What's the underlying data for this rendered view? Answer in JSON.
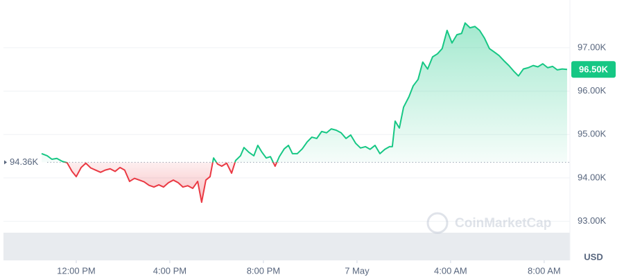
{
  "chart_data": {
    "type": "line",
    "currency": "USD",
    "watermark": "CoinMarketCap",
    "up_color": "#16c784",
    "down_color": "#ea3943",
    "baseline": {
      "value": 94360,
      "label": "94.36K"
    },
    "last_price": {
      "value": 96500,
      "label": "96.50K"
    },
    "xlim": [
      8.89,
      33.1
    ],
    "xticks": [
      {
        "value": 12,
        "label": "12:00 PM"
      },
      {
        "value": 16,
        "label": "4:00 PM"
      },
      {
        "value": 20,
        "label": "8:00 PM"
      },
      {
        "value": 24,
        "label": "7 May"
      },
      {
        "value": 28,
        "label": "4:00 AM"
      },
      {
        "value": 32,
        "label": "8:00 AM"
      }
    ],
    "ylim": [
      92100,
      98100
    ],
    "yticks": [
      {
        "value": 93000,
        "label": "93.00K"
      },
      {
        "value": 94000,
        "label": "94.00K"
      },
      {
        "value": 95000,
        "label": "95.00K"
      },
      {
        "value": 96000,
        "label": "96.00K"
      },
      {
        "value": 97000,
        "label": "97.00K"
      }
    ],
    "grid": true,
    "x": [
      10.52,
      10.76,
      10.96,
      11.17,
      11.41,
      11.61,
      11.82,
      12.0,
      12.21,
      12.41,
      12.62,
      12.83,
      13.04,
      13.24,
      13.45,
      13.66,
      13.87,
      14.07,
      14.28,
      14.49,
      14.7,
      14.9,
      15.11,
      15.32,
      15.53,
      15.73,
      15.94,
      16.15,
      16.36,
      16.56,
      16.77,
      16.98,
      17.19,
      17.36,
      17.54,
      17.72,
      17.87,
      18.04,
      18.22,
      18.43,
      18.64,
      18.81,
      19.02,
      19.17,
      19.38,
      19.59,
      19.76,
      19.94,
      20.12,
      20.3,
      20.5,
      20.68,
      20.89,
      21.07,
      21.24,
      21.45,
      21.66,
      21.87,
      22.07,
      22.28,
      22.49,
      22.7,
      22.9,
      23.11,
      23.32,
      23.53,
      23.73,
      23.94,
      24.15,
      24.36,
      24.56,
      24.77,
      24.98,
      25.19,
      25.39,
      25.51,
      25.63,
      25.81,
      25.99,
      26.22,
      26.4,
      26.61,
      26.81,
      27.02,
      27.23,
      27.44,
      27.64,
      27.85,
      28.06,
      28.27,
      28.47,
      28.62,
      28.83,
      29.04,
      29.24,
      29.45,
      29.66,
      29.87,
      30.07,
      30.28,
      30.49,
      30.7,
      30.9,
      31.11,
      31.32,
      31.53,
      31.73,
      31.94,
      32.15,
      32.36,
      32.56,
      32.77,
      32.98
    ],
    "values": [
      94560,
      94510,
      94430,
      94450,
      94380,
      94350,
      94150,
      94030,
      94240,
      94340,
      94230,
      94180,
      94130,
      94180,
      94210,
      94150,
      94240,
      94180,
      93920,
      93990,
      93950,
      93910,
      93830,
      93790,
      93840,
      93790,
      93890,
      93950,
      93890,
      93790,
      93820,
      93760,
      93920,
      93440,
      93950,
      94030,
      94460,
      94320,
      94270,
      94340,
      94110,
      94400,
      94510,
      94700,
      94590,
      94510,
      94750,
      94590,
      94460,
      94490,
      94270,
      94490,
      94670,
      94750,
      94560,
      94560,
      94670,
      94830,
      94940,
      94910,
      95070,
      95040,
      95130,
      95100,
      95040,
      94910,
      94990,
      94800,
      94690,
      94720,
      94660,
      94750,
      94560,
      94660,
      94720,
      94720,
      95310,
      95150,
      95630,
      95870,
      96120,
      96270,
      96670,
      96510,
      96790,
      96860,
      96980,
      97400,
      97110,
      97300,
      97330,
      97570,
      97460,
      97490,
      97400,
      97220,
      96980,
      96900,
      96820,
      96700,
      96590,
      96460,
      96350,
      96510,
      96540,
      96590,
      96560,
      96630,
      96540,
      96570,
      96490,
      96510,
      96500
    ]
  }
}
